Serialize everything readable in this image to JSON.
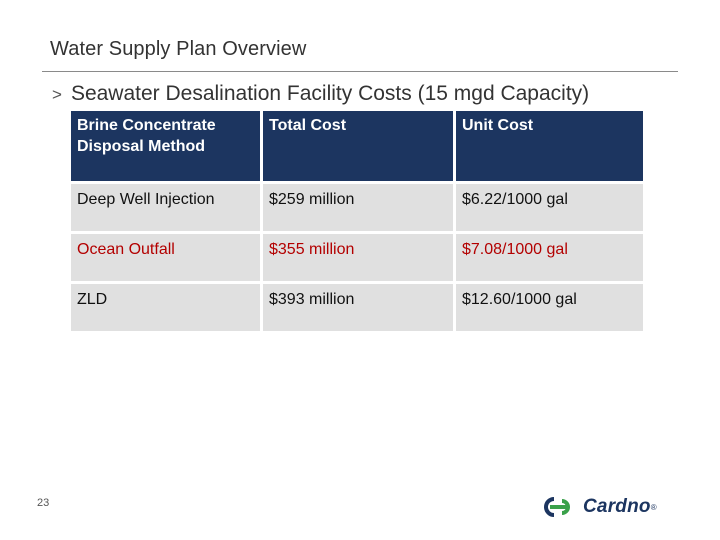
{
  "slide": {
    "title": "Water Supply Plan Overview",
    "bullet_marker": ">",
    "bullet_text": "Seawater Desalination Facility Costs (15 mgd Capacity)",
    "page_number": "23"
  },
  "table": {
    "headers": [
      "Brine Concentrate Disposal Method",
      "Total Cost",
      "Unit Cost"
    ],
    "rows": [
      [
        "Deep Well Injection",
        "$259 million",
        "$6.22/1000 gal"
      ],
      [
        "Ocean Outfall",
        "$355 million",
        "$7.08/1000 gal"
      ],
      [
        "ZLD",
        "$393 million",
        "$12.60/1000 gal"
      ]
    ]
  },
  "logo": {
    "text": "Cardno",
    "mark": "®",
    "icon": "cardno-logo-icon"
  },
  "colors": {
    "header_bg": "#1c3560",
    "cell_bg": "#e0e0e0",
    "accent_red": "#b30000",
    "logo_blue": "#1c3560",
    "logo_green": "#3aa14a"
  }
}
